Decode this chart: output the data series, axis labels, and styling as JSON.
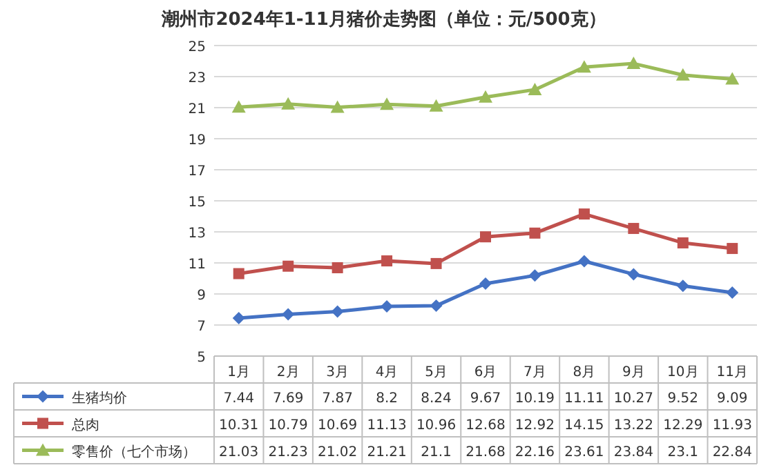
{
  "chart_data": {
    "type": "line",
    "title": "潮州市2024年1-11月猪价走势图（单位：元/500克）",
    "categories": [
      "1月",
      "2月",
      "3月",
      "4月",
      "5月",
      "6月",
      "7月",
      "8月",
      "9月",
      "10月",
      "11月"
    ],
    "series": [
      {
        "name": "生猪均价",
        "color": "#4472c4",
        "marker": "diamond",
        "values": [
          7.44,
          7.69,
          7.87,
          8.2,
          8.24,
          9.67,
          10.19,
          11.11,
          10.27,
          9.52,
          9.09
        ]
      },
      {
        "name": "总肉",
        "color": "#c0504d",
        "marker": "square",
        "values": [
          10.31,
          10.79,
          10.69,
          11.13,
          10.96,
          12.68,
          12.92,
          14.15,
          13.22,
          12.29,
          11.93
        ]
      },
      {
        "name": "零售价（七个市场）",
        "color": "#9bbb59",
        "marker": "triangle",
        "values": [
          21.03,
          21.23,
          21.02,
          21.21,
          21.1,
          21.68,
          22.16,
          23.61,
          23.84,
          23.1,
          22.84
        ]
      }
    ],
    "ylim": [
      5,
      25
    ],
    "yticks": [
      5,
      7,
      9,
      11,
      13,
      15,
      17,
      19,
      21,
      23,
      25
    ],
    "grid": "y",
    "data_labels": true,
    "legend": "bottom",
    "line_style": "solid"
  }
}
